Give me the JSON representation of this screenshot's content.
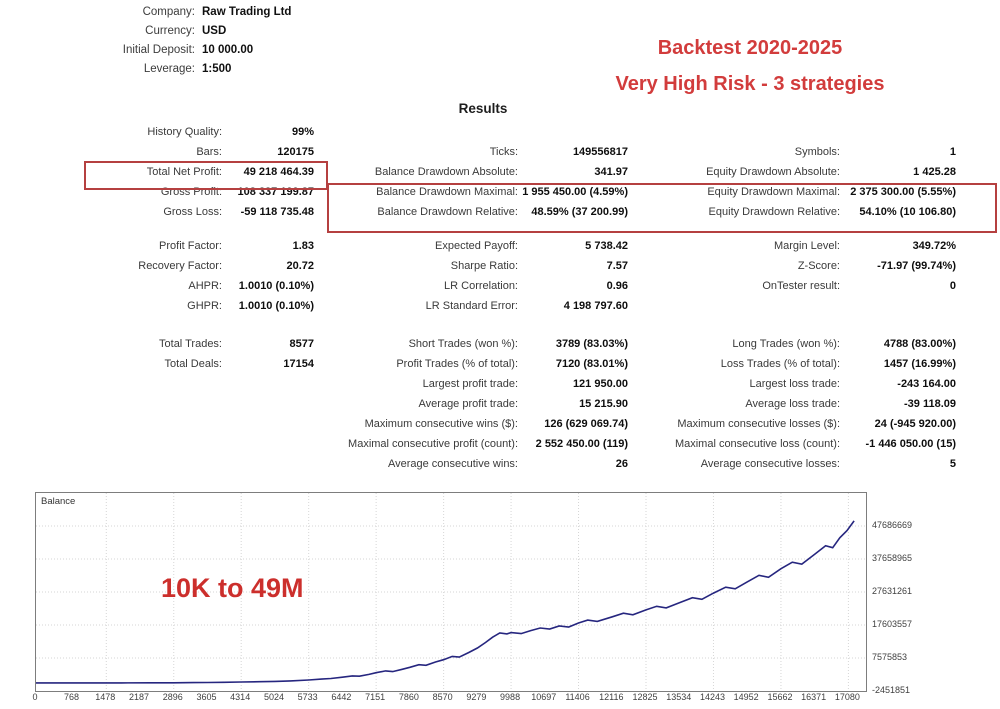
{
  "account_info": {
    "rows": [
      {
        "label": "Company:",
        "value": "Raw Trading Ltd"
      },
      {
        "label": "Currency:",
        "value": "USD"
      },
      {
        "label": "Initial Deposit:",
        "value": "10 000.00"
      },
      {
        "label": "Leverage:",
        "value": "1:500"
      }
    ]
  },
  "banner": {
    "line1": "Backtest 2020-2025",
    "line2": "Very High Risk - 3 strategies",
    "color": "#d23c3c"
  },
  "results_heading": "Results",
  "stats_groups": [
    {
      "rows": [
        {
          "c1": {
            "label": "History Quality:",
            "value": "99%"
          },
          "c2": null,
          "c3": null
        },
        {
          "c1": {
            "label": "Bars:",
            "value": "120175"
          },
          "c2": {
            "label": "Ticks:",
            "value": "149556817"
          },
          "c3": {
            "label": "Symbols:",
            "value": "1"
          }
        },
        {
          "c1": {
            "label": "Total Net Profit:",
            "value": "49 218 464.39"
          },
          "c2": {
            "label": "Balance Drawdown Absolute:",
            "value": "341.97"
          },
          "c3": {
            "label": "Equity Drawdown Absolute:",
            "value": "1 425.28"
          }
        },
        {
          "c1": {
            "label": "Gross Profit:",
            "value": "108 337 199.87"
          },
          "c2": {
            "label": "Balance Drawdown Maximal:",
            "value": "1 955 450.00 (4.59%)"
          },
          "c3": {
            "label": "Equity Drawdown Maximal:",
            "value": "2 375 300.00 (5.55%)"
          }
        },
        {
          "c1": {
            "label": "Gross Loss:",
            "value": "-59 118 735.48"
          },
          "c2": {
            "label": "Balance Drawdown Relative:",
            "value": "48.59% (37 200.99)"
          },
          "c3": {
            "label": "Equity Drawdown Relative:",
            "value": "54.10% (10 106.80)"
          }
        }
      ]
    },
    {
      "rows": [
        {
          "c1": {
            "label": "Profit Factor:",
            "value": "1.83"
          },
          "c2": {
            "label": "Expected Payoff:",
            "value": "5 738.42"
          },
          "c3": {
            "label": "Margin Level:",
            "value": "349.72%"
          }
        },
        {
          "c1": {
            "label": "Recovery Factor:",
            "value": "20.72"
          },
          "c2": {
            "label": "Sharpe Ratio:",
            "value": "7.57"
          },
          "c3": {
            "label": "Z-Score:",
            "value": "-71.97 (99.74%)"
          }
        },
        {
          "c1": {
            "label": "AHPR:",
            "value": "1.0010 (0.10%)"
          },
          "c2": {
            "label": "LR Correlation:",
            "value": "0.96"
          },
          "c3": {
            "label": "OnTester result:",
            "value": "0"
          }
        },
        {
          "c1": {
            "label": "GHPR:",
            "value": "1.0010 (0.10%)"
          },
          "c2": {
            "label": "LR Standard Error:",
            "value": "4 198 797.60"
          },
          "c3": null
        }
      ]
    },
    {
      "rows": [
        {
          "c1": {
            "label": "Total Trades:",
            "value": "8577"
          },
          "c2": {
            "label": "Short Trades (won %):",
            "value": "3789 (83.03%)"
          },
          "c3": {
            "label": "Long Trades (won %):",
            "value": "4788 (83.00%)"
          }
        },
        {
          "c1": {
            "label": "Total Deals:",
            "value": "17154"
          },
          "c2": {
            "label": "Profit Trades (% of total):",
            "value": "7120 (83.01%)"
          },
          "c3": {
            "label": "Loss Trades (% of total):",
            "value": "1457 (16.99%)"
          }
        },
        {
          "c1": null,
          "c2": {
            "label": "Largest profit trade:",
            "value": "121 950.00"
          },
          "c3": {
            "label": "Largest loss trade:",
            "value": "-243 164.00"
          }
        },
        {
          "c1": null,
          "c2": {
            "label": "Average profit trade:",
            "value": "15 215.90"
          },
          "c3": {
            "label": "Average loss trade:",
            "value": "-39 118.09"
          }
        },
        {
          "c1": null,
          "c2": {
            "label": "Maximum consecutive wins ($):",
            "value": "126 (629 069.74)"
          },
          "c3": {
            "label": "Maximum consecutive losses ($):",
            "value": "24 (-945 920.00)"
          }
        },
        {
          "c1": null,
          "c2": {
            "label": "Maximal consecutive profit (count):",
            "value": "2 552 450.00 (119)"
          },
          "c3": {
            "label": "Maximal consecutive loss (count):",
            "value": "-1 446 050.00 (15)"
          }
        },
        {
          "c1": null,
          "c2": {
            "label": "Average consecutive wins:",
            "value": "26"
          },
          "c3": {
            "label": "Average consecutive losses:",
            "value": "5"
          }
        }
      ]
    }
  ],
  "chart_data": {
    "type": "line",
    "title": "Balance",
    "annotation": "10K to 49M",
    "line_color": "#26267f",
    "grid": true,
    "legend_position": "top-left",
    "x_range": [
      0,
      17450
    ],
    "y_range": [
      -2451851,
      57714373
    ],
    "x_ticks": [
      0,
      768,
      1478,
      2187,
      2896,
      3605,
      4314,
      5024,
      5733,
      6442,
      7151,
      7860,
      8570,
      9279,
      9988,
      10697,
      11406,
      12116,
      12825,
      13534,
      14243,
      14952,
      15662,
      16371,
      17080
    ],
    "y_ticks": [
      -2451851,
      7575853,
      17603557,
      27631261,
      37658965,
      47686669
    ],
    "series": [
      {
        "name": "Balance",
        "points": [
          [
            0,
            10000
          ],
          [
            600,
            11000
          ],
          [
            1200,
            13000
          ],
          [
            1800,
            18000
          ],
          [
            2400,
            30000
          ],
          [
            2896,
            55000
          ],
          [
            3300,
            90000
          ],
          [
            3605,
            130000
          ],
          [
            3950,
            190000
          ],
          [
            4314,
            280000
          ],
          [
            4700,
            380000
          ],
          [
            5024,
            480000
          ],
          [
            5350,
            620000
          ],
          [
            5733,
            900000
          ],
          [
            6000,
            1150000
          ],
          [
            6200,
            1350000
          ],
          [
            6442,
            1750000
          ],
          [
            6650,
            2150000
          ],
          [
            6800,
            2050000
          ],
          [
            7000,
            2600000
          ],
          [
            7151,
            3100000
          ],
          [
            7350,
            3650000
          ],
          [
            7500,
            3450000
          ],
          [
            7700,
            4150000
          ],
          [
            7860,
            4750000
          ],
          [
            8050,
            5550000
          ],
          [
            8200,
            5350000
          ],
          [
            8400,
            6350000
          ],
          [
            8570,
            7050000
          ],
          [
            8750,
            8050000
          ],
          [
            8900,
            7850000
          ],
          [
            9100,
            9250000
          ],
          [
            9279,
            10600000
          ],
          [
            9450,
            12300000
          ],
          [
            9600,
            13900000
          ],
          [
            9750,
            15200000
          ],
          [
            9900,
            14900000
          ],
          [
            9988,
            15300000
          ],
          [
            10200,
            15000000
          ],
          [
            10400,
            15900000
          ],
          [
            10600,
            16700000
          ],
          [
            10800,
            16400000
          ],
          [
            11000,
            17300000
          ],
          [
            11200,
            17000000
          ],
          [
            11406,
            18200000
          ],
          [
            11600,
            19100000
          ],
          [
            11800,
            18700000
          ],
          [
            12116,
            20100000
          ],
          [
            12350,
            21200000
          ],
          [
            12550,
            20700000
          ],
          [
            12825,
            22200000
          ],
          [
            13050,
            23300000
          ],
          [
            13250,
            22800000
          ],
          [
            13534,
            24400000
          ],
          [
            13800,
            25900000
          ],
          [
            14000,
            25400000
          ],
          [
            14243,
            27300000
          ],
          [
            14500,
            29100000
          ],
          [
            14700,
            28600000
          ],
          [
            14952,
            30700000
          ],
          [
            15200,
            32700000
          ],
          [
            15400,
            32100000
          ],
          [
            15662,
            34700000
          ],
          [
            15900,
            36700000
          ],
          [
            16100,
            36100000
          ],
          [
            16371,
            39100000
          ],
          [
            16600,
            41700000
          ],
          [
            16750,
            41100000
          ],
          [
            16900,
            44100000
          ],
          [
            17050,
            46300000
          ],
          [
            17200,
            49228464
          ]
        ]
      }
    ]
  }
}
